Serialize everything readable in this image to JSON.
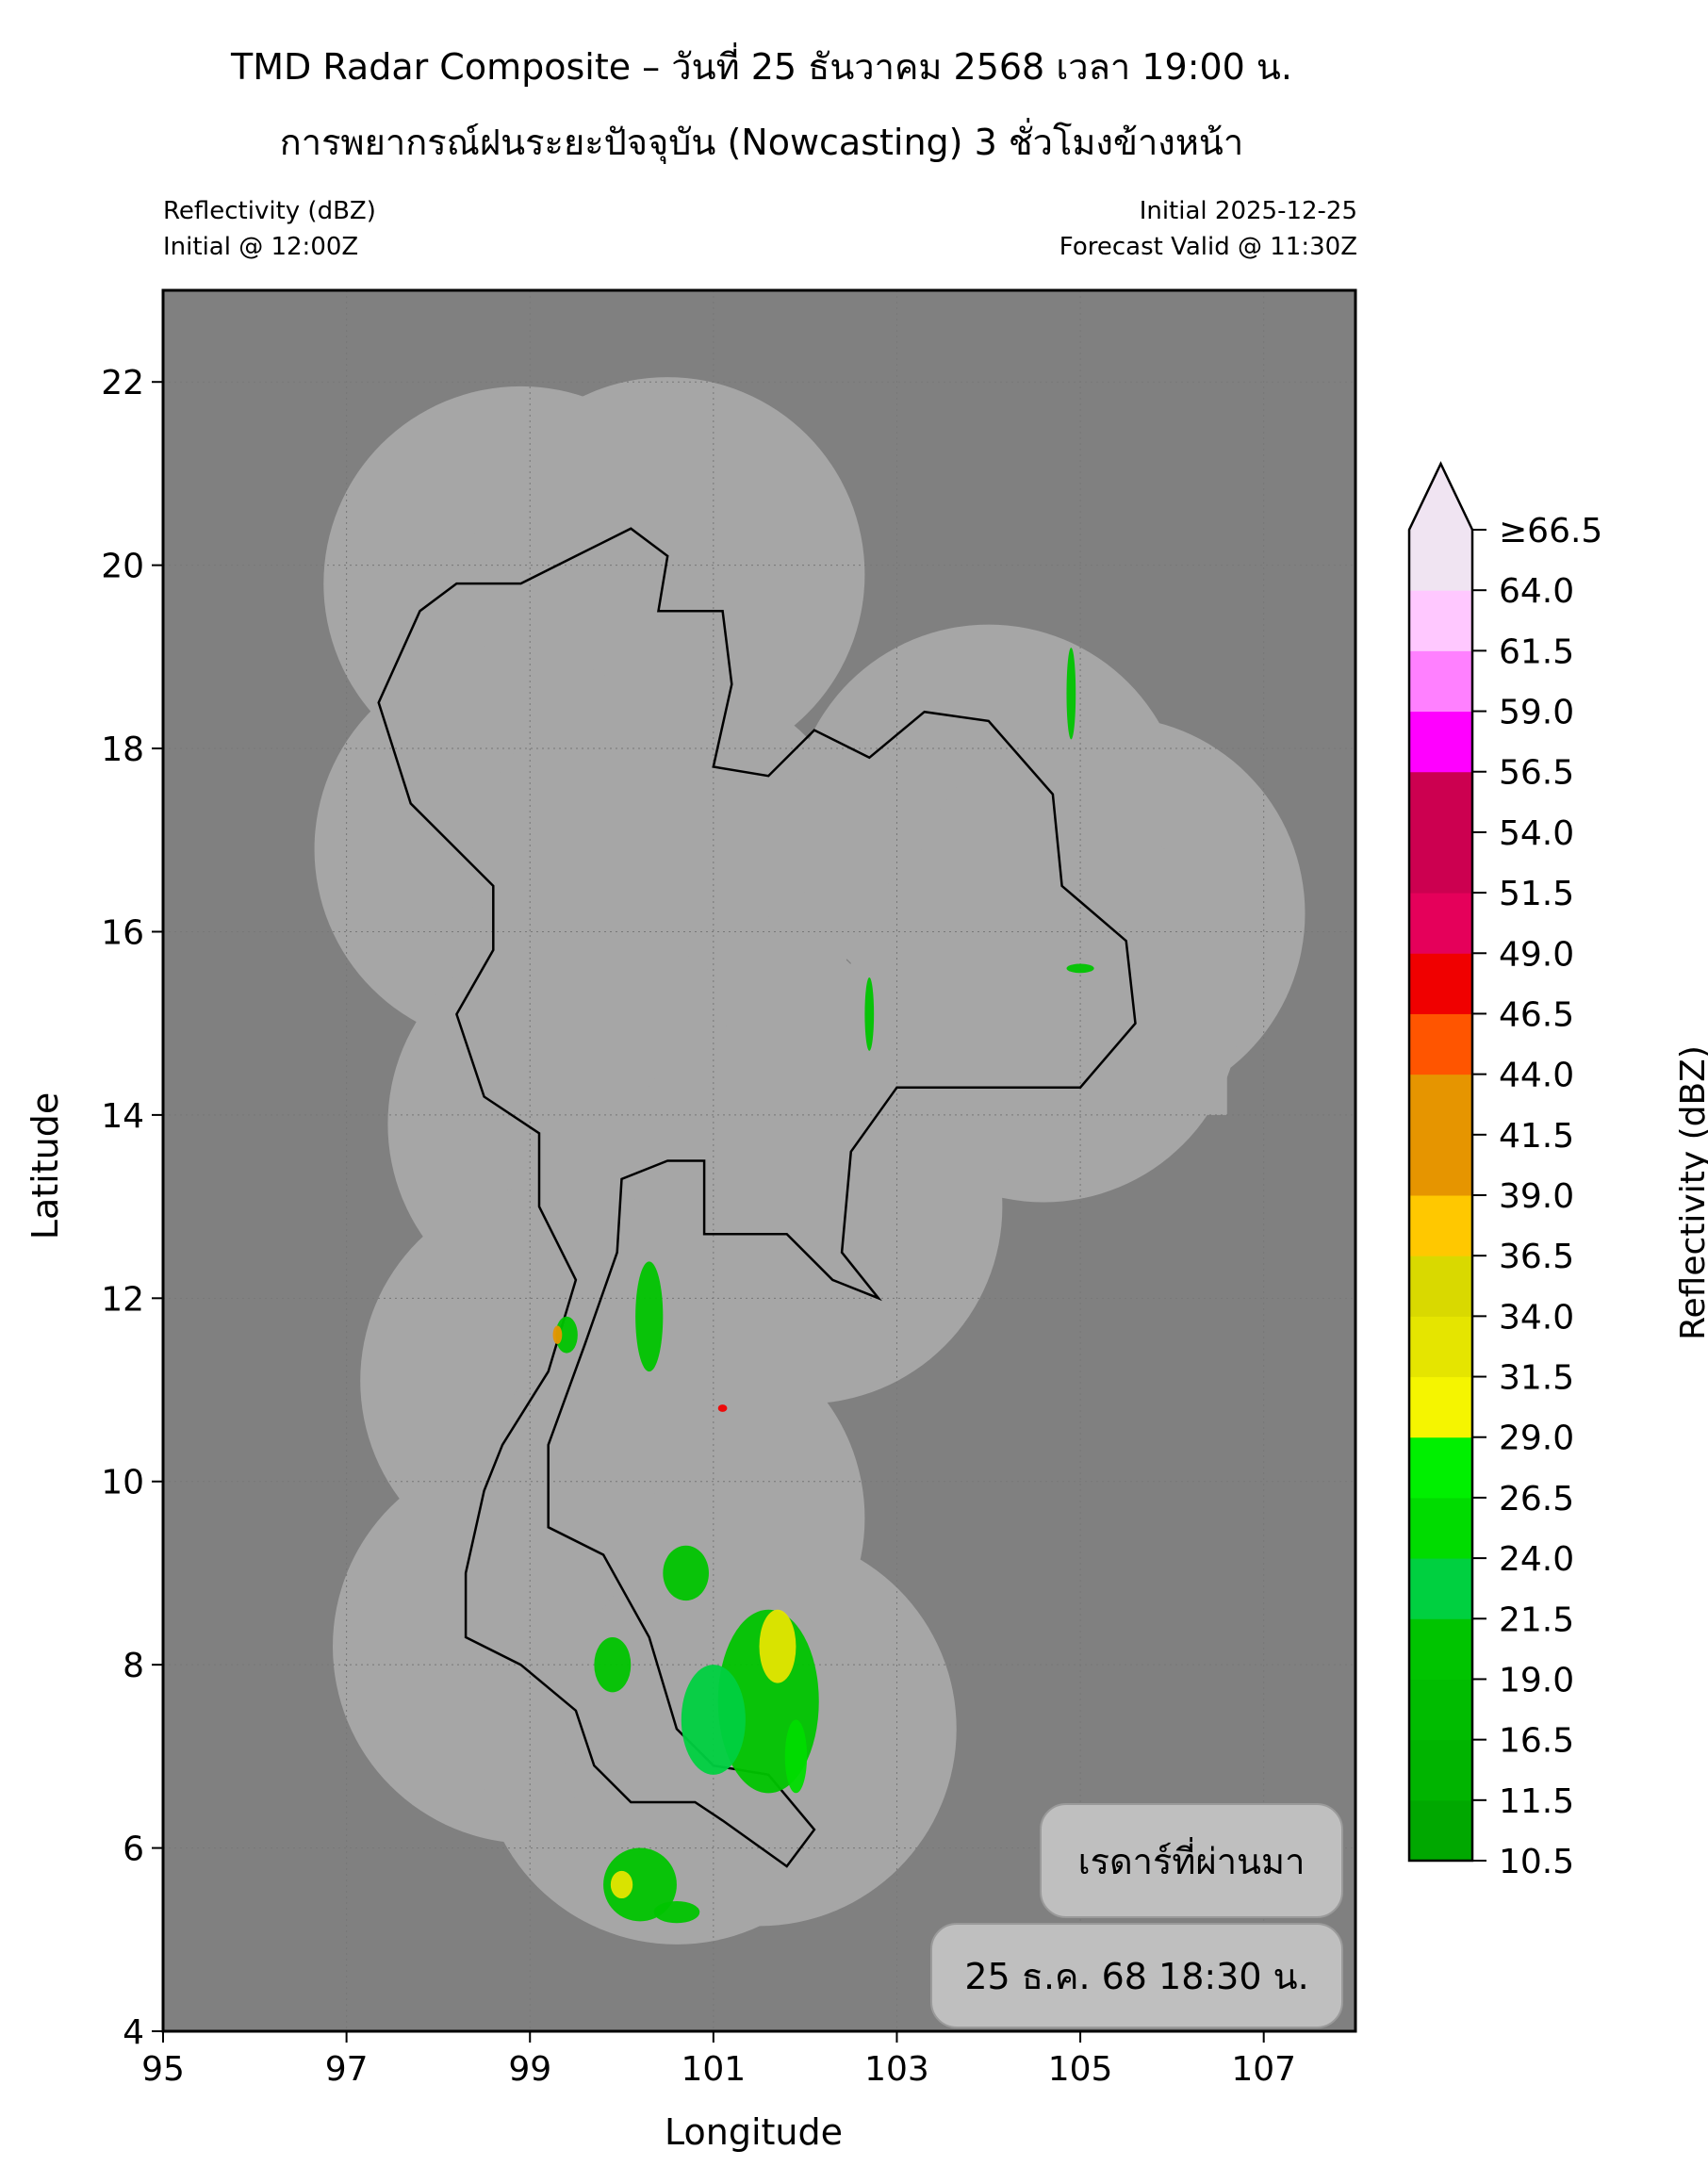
{
  "header": {
    "title_line1": "TMD Radar Composite – วันที่ 25 ธันวาคม 2568 เวลา 19:00 น.",
    "title_line2": "การพยากรณ์ฝนระยะปัจจุบัน (Nowcasting) 3 ชั่วโมงข้างหน้า",
    "left_line1": "Reflectivity (dBZ)",
    "left_line2": "Initial @ 12:00Z",
    "right_line1": "Initial 2025-12-25",
    "right_line2": "Forecast Valid @ 11:30Z"
  },
  "map": {
    "xlabel": "Longitude",
    "ylabel": "Latitude",
    "lon_range": [
      95,
      108
    ],
    "lat_range": [
      4,
      23
    ],
    "x_ticks": [
      "95",
      "97",
      "99",
      "101",
      "103",
      "105",
      "107"
    ],
    "y_ticks": [
      "4",
      "6",
      "8",
      "10",
      "12",
      "14",
      "16",
      "18",
      "20",
      "22"
    ],
    "background_color": "#808080",
    "coverage_color": "#a6a6a6",
    "badge_label": "เรดาร์ที่ผ่านมา",
    "badge_time": "25 ธ.ค. 68 18:30 น."
  },
  "colorbar": {
    "label": "Reflectivity (dBZ)",
    "ticks": [
      "10.5",
      "11.5",
      "16.5",
      "19.0",
      "21.5",
      "24.0",
      "26.5",
      "29.0",
      "31.5",
      "34.0",
      "36.5",
      "39.0",
      "41.5",
      "44.0",
      "46.5",
      "49.0",
      "51.5",
      "54.0",
      "56.5",
      "59.0",
      "61.5",
      "64.0",
      "≥66.5"
    ],
    "colors": [
      "#00a800",
      "#00b400",
      "#00bc00",
      "#00c400",
      "#00d040",
      "#00dc00",
      "#00f000",
      "#f5f500",
      "#e5e500",
      "#d9d900",
      "#ffc800",
      "#e69500",
      "#e69500",
      "#ff5500",
      "#f00000",
      "#e5005a",
      "#cc0050",
      "#cc0050",
      "#ff00ff",
      "#ff80ff",
      "#ffc8ff",
      "#f0e4f2"
    ],
    "extend_color": "#f0e4f2"
  }
}
